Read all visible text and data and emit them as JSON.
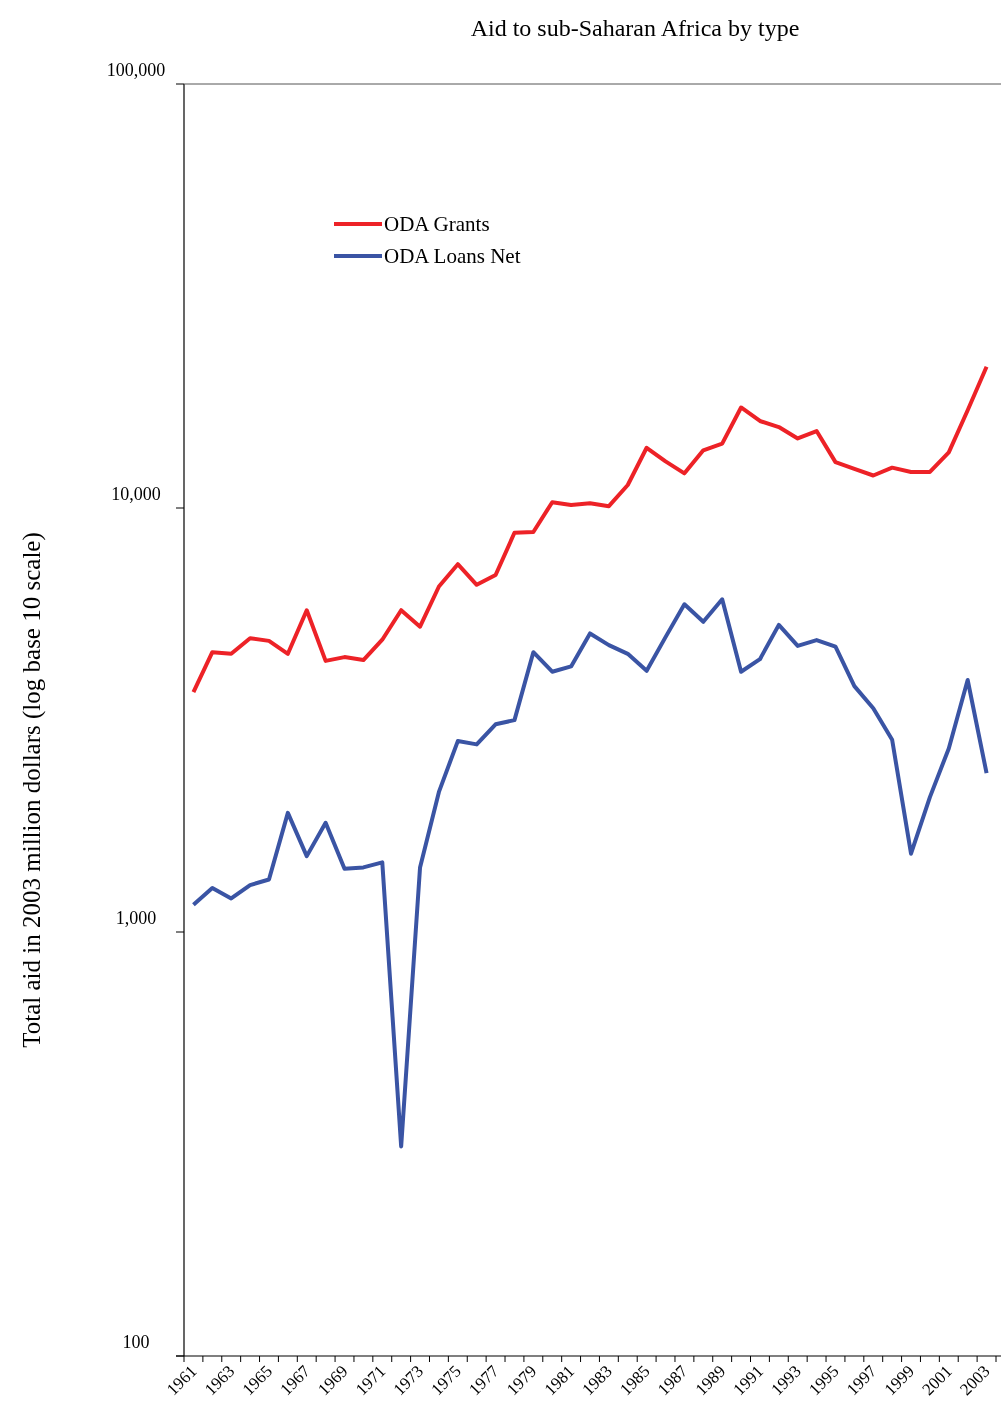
{
  "chart_data": {
    "type": "line",
    "title": "Aid to sub-Saharan Africa by type",
    "ylabel": "Total aid in 2003 million dollars (log base 10 scale)",
    "categories": [
      "1961",
      null,
      "1963",
      null,
      "1965",
      null,
      "1967",
      null,
      "1969",
      null,
      "1971",
      null,
      "1973",
      null,
      "1975",
      null,
      "1977",
      null,
      "1979",
      null,
      "1981",
      null,
      "1983",
      null,
      "1985",
      null,
      "1987",
      null,
      "1989",
      null,
      "1991",
      null,
      "1993",
      null,
      "1995",
      null,
      "1997",
      null,
      "1999",
      null,
      "2001",
      null,
      "2003"
    ],
    "log": "y",
    "ylim": [
      100,
      100000
    ],
    "yticks": [
      {
        "value": 100,
        "label": "100"
      },
      {
        "value": 1000,
        "label": "1,000"
      },
      {
        "value": 10000,
        "label": "10,000"
      },
      {
        "value": 100000,
        "label": "100,000"
      }
    ],
    "grid": false,
    "legend": "top left",
    "marker": "none",
    "line_style": "solid",
    "series": [
      {
        "name": "ODA Grants",
        "color": "#ed2227",
        "values": [
          3680,
          4570,
          4530,
          4930,
          4860,
          4530,
          5740,
          4360,
          4450,
          4380,
          4890,
          5740,
          5250,
          6530,
          7370,
          6590,
          6950,
          8740,
          8780,
          10320,
          10160,
          10260,
          10100,
          11330,
          13870,
          12880,
          12070,
          13680,
          14190,
          17260,
          16040,
          15520,
          14590,
          15190,
          12830,
          12360,
          11930,
          12450,
          12160,
          12160,
          13530,
          17000,
          21530
        ]
      },
      {
        "name": "ODA Loans Net",
        "color": "#3a54a4",
        "values": [
          1160,
          1270,
          1200,
          1290,
          1330,
          1910,
          1510,
          1810,
          1410,
          1420,
          1460,
          312,
          1420,
          2140,
          2820,
          2770,
          3090,
          3160,
          4570,
          4110,
          4230,
          5060,
          4750,
          4530,
          4130,
          4960,
          5930,
          5390,
          6090,
          4110,
          4400,
          5300,
          4730,
          4880,
          4710,
          3800,
          3370,
          2840,
          1530,
          2080,
          2710,
          3930,
          2370
        ]
      }
    ]
  }
}
